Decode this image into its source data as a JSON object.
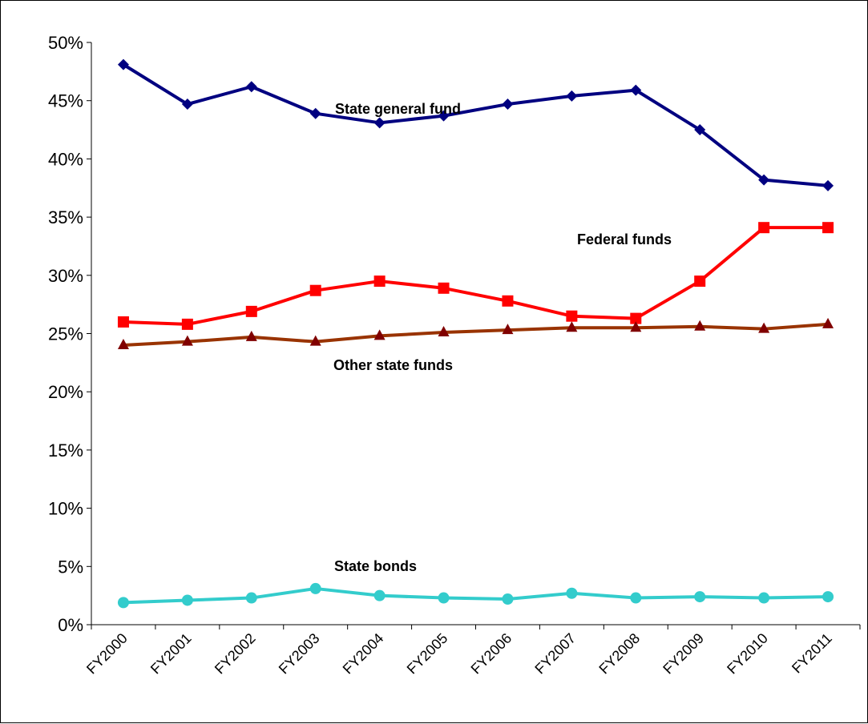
{
  "chart_data": {
    "type": "line",
    "title": "",
    "xlabel": "",
    "ylabel": "",
    "ylim": [
      0,
      50
    ],
    "y_ticks": [
      "0%",
      "5%",
      "10%",
      "15%",
      "20%",
      "25%",
      "30%",
      "35%",
      "40%",
      "45%",
      "50%"
    ],
    "grid": false,
    "legend": "none (series labelled directly on plot)",
    "categories": [
      "FY2000",
      "FY2001",
      "FY2002",
      "FY2003",
      "FY2004",
      "FY2005",
      "FY2006",
      "FY2007",
      "FY2008",
      "FY2009",
      "FY2010",
      "FY2011"
    ],
    "series": [
      {
        "name": "State general fund",
        "color": "#000080",
        "marker": "diamond",
        "values": [
          48.1,
          44.7,
          46.2,
          43.9,
          43.1,
          43.7,
          44.7,
          45.4,
          45.9,
          42.5,
          38.2,
          37.7
        ]
      },
      {
        "name": "Federal funds",
        "color": "#ff0000",
        "marker": "square",
        "values": [
          26.0,
          25.8,
          26.9,
          28.7,
          29.5,
          28.9,
          27.8,
          26.5,
          26.3,
          29.5,
          34.1,
          34.1
        ]
      },
      {
        "name": "Other state funds",
        "color": "#993300",
        "marker_color": "#800000",
        "marker": "triangle",
        "values": [
          24.0,
          24.3,
          24.7,
          24.3,
          24.8,
          25.1,
          25.3,
          25.5,
          25.5,
          25.6,
          25.4,
          25.8
        ]
      },
      {
        "name": "State bonds",
        "color": "#33cccc",
        "marker": "circle",
        "values": [
          1.9,
          2.1,
          2.3,
          3.1,
          2.5,
          2.3,
          2.2,
          2.7,
          2.3,
          2.4,
          2.3,
          2.4
        ]
      }
    ]
  }
}
